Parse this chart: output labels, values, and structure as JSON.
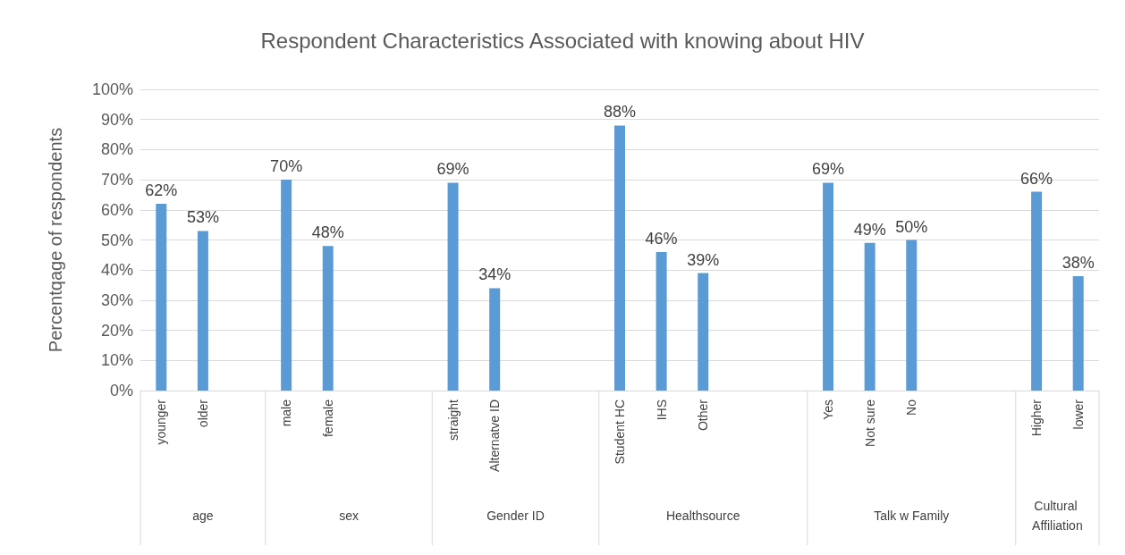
{
  "chart_data": {
    "type": "bar",
    "title": "Respondent Characteristics Associated with knowing about HIV",
    "ylabel": "Percentqage of respondents",
    "categories": [
      "younger",
      "older",
      null,
      "male",
      "female",
      null,
      null,
      "straight",
      "Alternatve ID",
      null,
      null,
      "Student HC",
      "IHS",
      "Other",
      null,
      null,
      "Yes",
      "Not sure",
      "No",
      null,
      null,
      "Higher",
      "lower"
    ],
    "values": [
      62,
      53,
      null,
      70,
      48,
      null,
      null,
      69,
      34,
      null,
      null,
      88,
      46,
      39,
      null,
      null,
      69,
      49,
      50,
      null,
      null,
      66,
      38
    ],
    "value_labels": [
      "62%",
      "53%",
      null,
      "70%",
      "48%",
      null,
      null,
      "69%",
      "34%",
      null,
      null,
      "88%",
      "46%",
      "39%",
      null,
      null,
      "69%",
      "49%",
      "50%",
      null,
      null,
      "66%",
      "38%"
    ],
    "color": "#5b9bd5",
    "annotations": [
      "age",
      "sex",
      "Gender ID",
      "Healthsource",
      "Talk w Family",
      "Cultural Affiliation"
    ],
    "ylim": [
      0,
      100
    ],
    "yticks": [
      {
        "value": 0,
        "label": "0%"
      },
      {
        "value": 10,
        "label": "10%"
      },
      {
        "value": 20,
        "label": "20%"
      },
      {
        "value": 30,
        "label": "30%"
      },
      {
        "value": 40,
        "label": "40%"
      },
      {
        "value": 50,
        "label": "50%"
      },
      {
        "value": 60,
        "label": "60%"
      },
      {
        "value": 70,
        "label": "70%"
      },
      {
        "value": 80,
        "label": "80%"
      },
      {
        "value": 90,
        "label": "90%"
      },
      {
        "value": 100,
        "label": "100%"
      }
    ],
    "grid": "y"
  }
}
